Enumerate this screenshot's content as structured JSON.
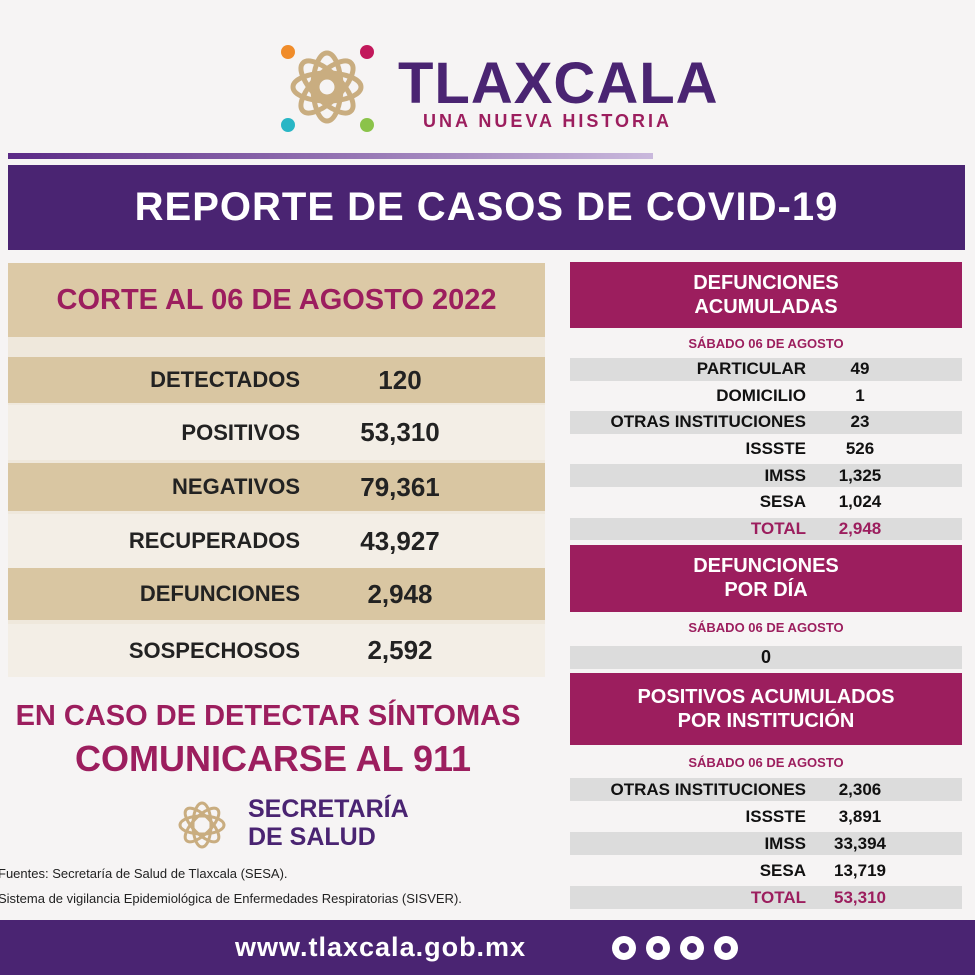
{
  "header": {
    "title": "TLAXCALA",
    "subtitle": "UNA NUEVA HISTORIA"
  },
  "banner": "REPORTE DE CASOS DE COVID-19",
  "summary": {
    "title": "CORTE AL 06 DE AGOSTO 2022",
    "rows": [
      [
        "DETECTADOS",
        "120"
      ],
      [
        "POSITIVOS",
        "53,310"
      ],
      [
        "NEGATIVOS",
        "79,361"
      ],
      [
        "RECUPERADOS",
        "43,927"
      ],
      [
        "DEFUNCIONES",
        "2,948"
      ],
      [
        "SOSPECHOSOS",
        "2,592"
      ]
    ]
  },
  "notice": [
    "EN CASO DE DETECTAR SÍNTOMAS",
    "COMUNICARSE AL 911"
  ],
  "secretaria": [
    "SECRETARÍA",
    "DE SALUD"
  ],
  "sources": [
    "Fuentes:  Secretaría de Salud de Tlaxcala (SESA).",
    "Sistema de vigilancia Epidemiológica de Enfermedades Respiratorias (SISVER)."
  ],
  "defunciones_acumuladas": {
    "title": [
      "DEFUNCIONES",
      "ACUMULADAS"
    ],
    "date": "SÁBADO 06 DE AGOSTO",
    "rows": [
      [
        "PARTICULAR",
        "49"
      ],
      [
        "DOMICILIO",
        "1"
      ],
      [
        "OTRAS INSTITUCIONES",
        "23"
      ],
      [
        "ISSSTE",
        "526"
      ],
      [
        "IMSS",
        "1,325"
      ],
      [
        "SESA",
        "1,024"
      ]
    ],
    "total": [
      "TOTAL",
      "2,948"
    ]
  },
  "defunciones_dia": {
    "title": [
      "DEFUNCIONES",
      "POR DÍA"
    ],
    "date": "SÁBADO 06 DE AGOSTO",
    "value": "0"
  },
  "positivos_institucion": {
    "title": [
      "POSITIVOS ACUMULADOS",
      "POR INSTITUCIÓN"
    ],
    "date": "SÁBADO 06 DE AGOSTO",
    "rows": [
      [
        "OTRAS INSTITUCIONES",
        "2,306"
      ],
      [
        "ISSSTE",
        "3,891"
      ],
      [
        "IMSS",
        "33,394"
      ],
      [
        "SESA",
        "13,719"
      ]
    ],
    "total": [
      "TOTAL",
      "53,310"
    ]
  },
  "footer": "www.tlaxcala.gob.mx"
}
